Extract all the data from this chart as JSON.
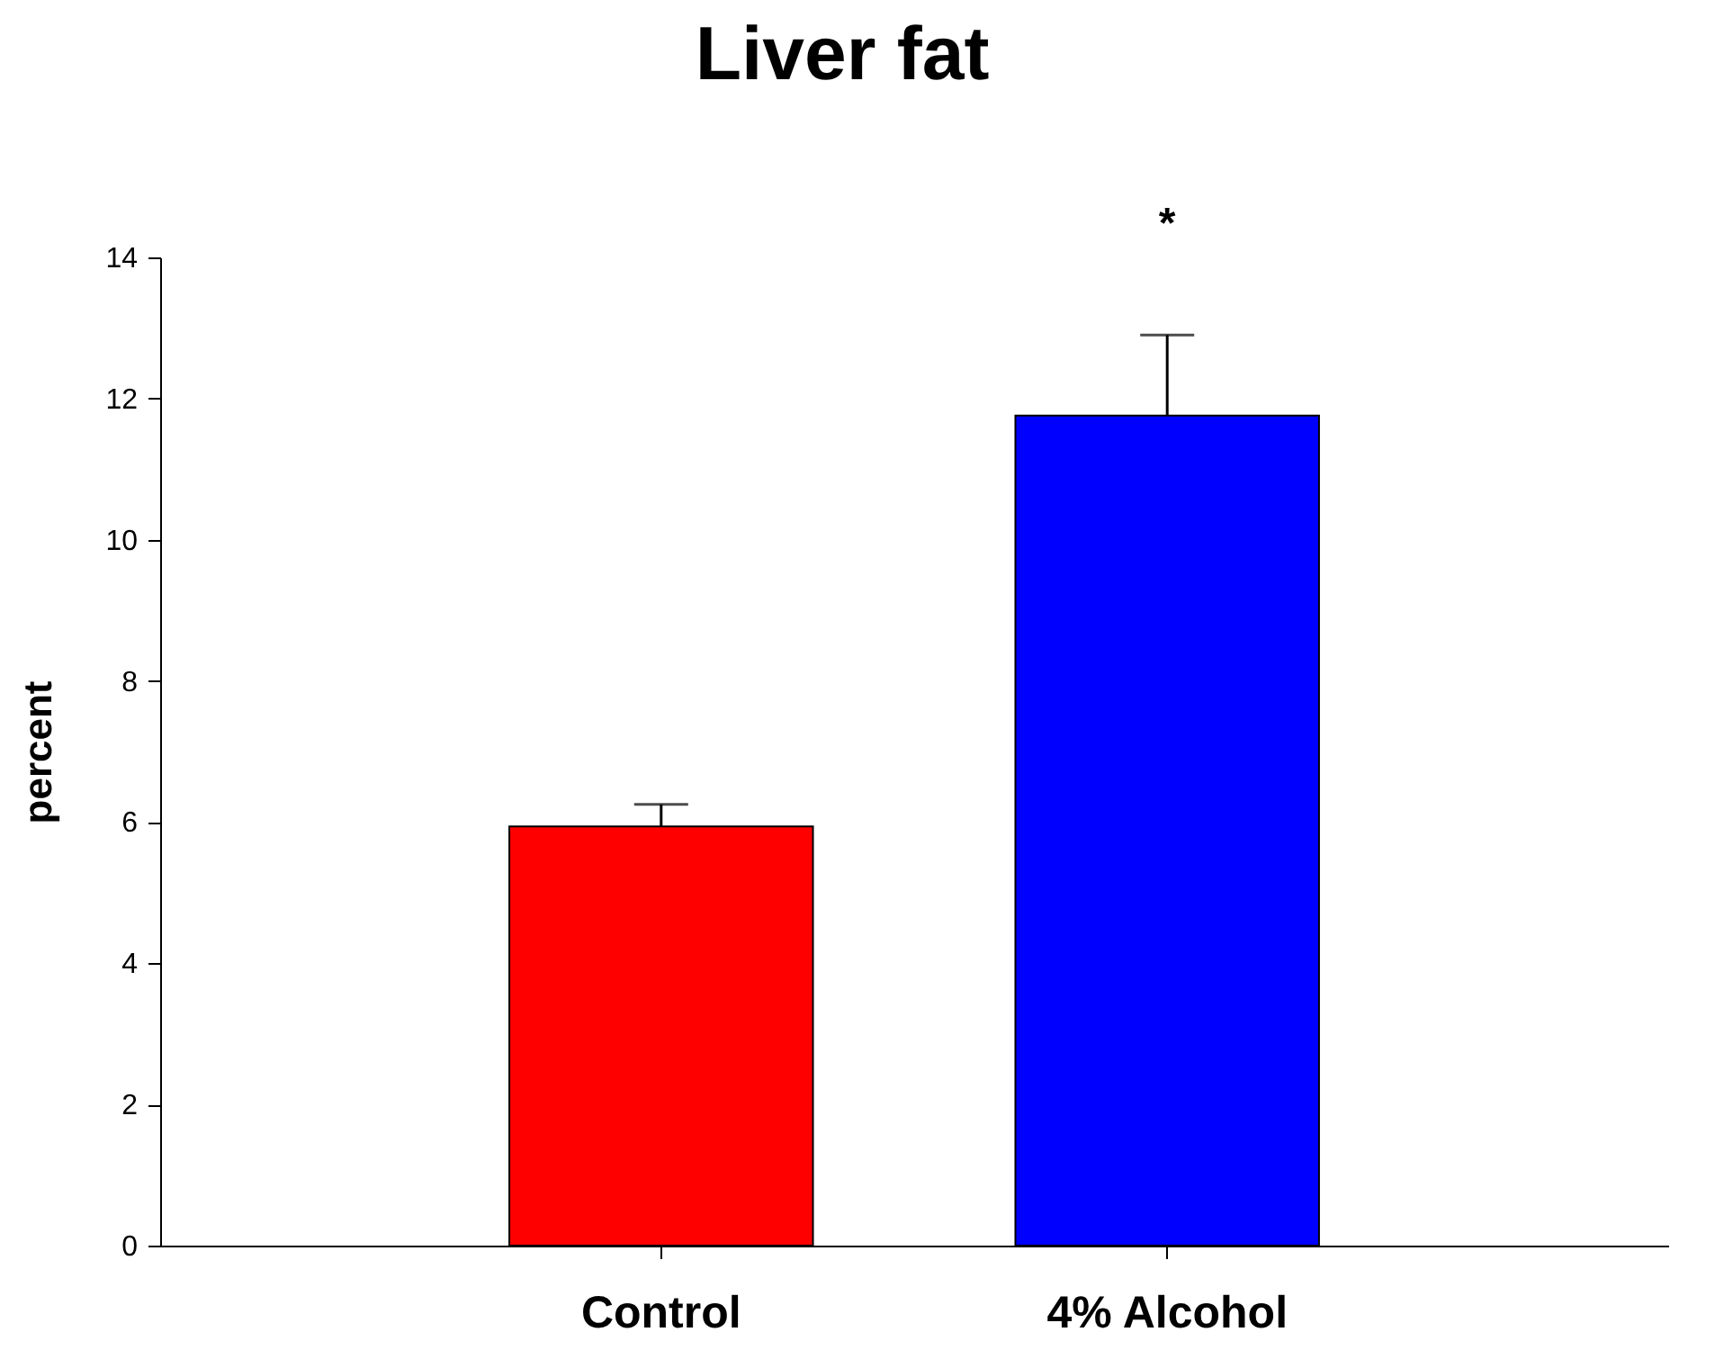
{
  "chart_data": {
    "type": "bar",
    "title": "Liver fat",
    "ylabel": "percent",
    "categories": [
      "Control",
      "4% Alcohol"
    ],
    "values": [
      5.94,
      11.76
    ],
    "colors": [
      "#ff0000",
      "#0000ff"
    ],
    "errors": [
      [
        5.94,
        6.25
      ],
      [
        11.76,
        12.9
      ]
    ],
    "ylim": [
      0,
      14
    ],
    "yticks": [
      0,
      2,
      4,
      6,
      8,
      10,
      12,
      14
    ],
    "annotations": [
      "*"
    ],
    "grid": false
  }
}
